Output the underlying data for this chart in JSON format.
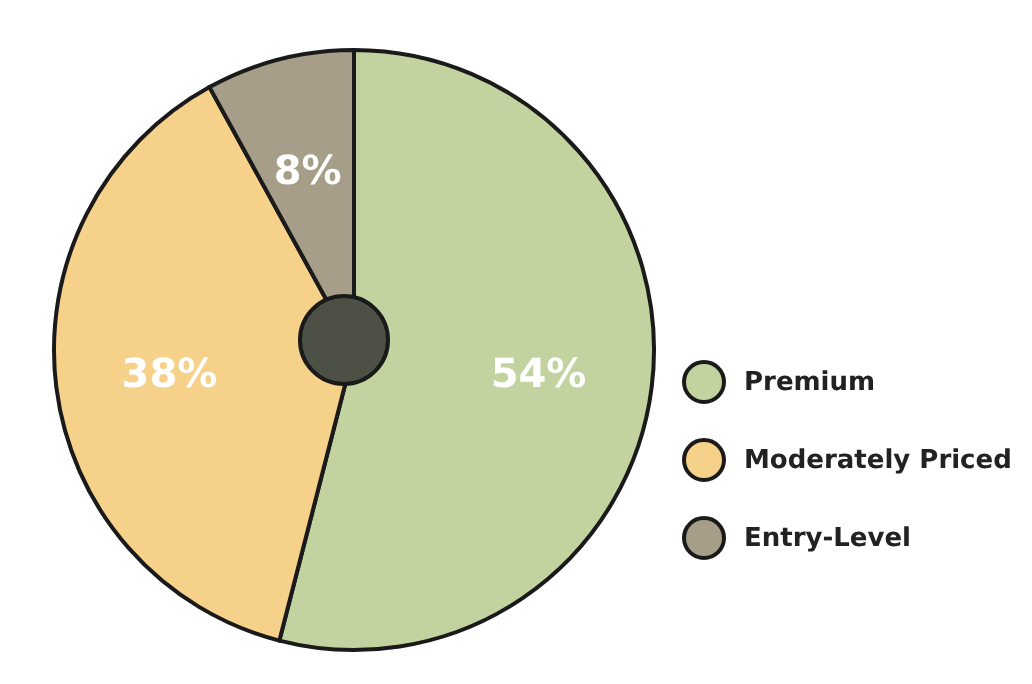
{
  "chart_data": {
    "type": "pie",
    "categories": [
      "Premium",
      "Moderately Priced",
      "Entry-Level"
    ],
    "values": [
      54,
      38,
      8
    ],
    "colors": [
      "#c2d3a0",
      "#f6d18a",
      "#a69e88"
    ],
    "value_labels": [
      "54%",
      "38%",
      "8%"
    ],
    "legend": "right"
  }
}
